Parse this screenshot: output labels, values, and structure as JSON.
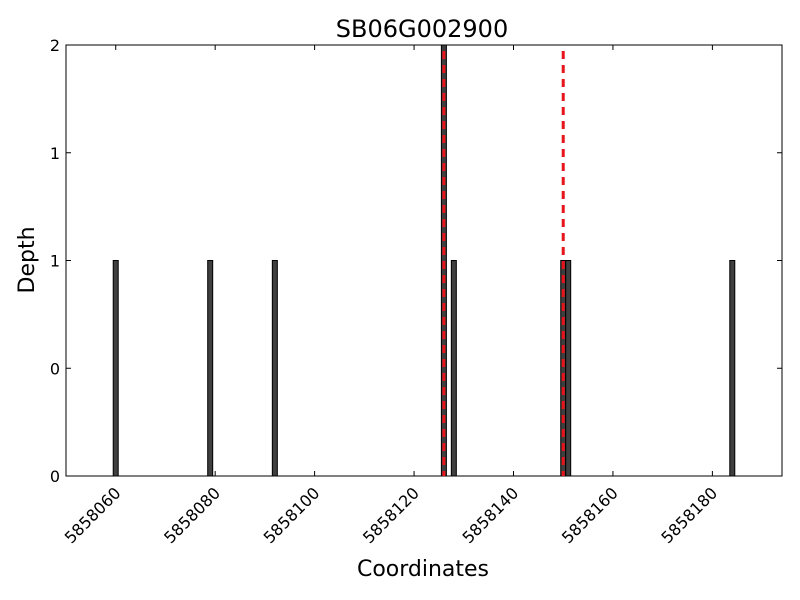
{
  "chart_data": {
    "type": "bar",
    "title": "SB06G002900",
    "xlabel": "Coordinates",
    "ylabel": "Depth",
    "xlim": [
      5858050,
      5858194
    ],
    "ylim": [
      0,
      2
    ],
    "x_ticks": [
      5858060,
      5858080,
      5858100,
      5858120,
      5858140,
      5858160,
      5858180
    ],
    "y_ticks": [
      0,
      0.5,
      1,
      1.5,
      2
    ],
    "y_tick_labels": [
      "0",
      "0",
      "1",
      "1",
      "2"
    ],
    "grid": false,
    "bars": [
      {
        "x": 5858060,
        "value": 1
      },
      {
        "x": 5858079,
        "value": 1
      },
      {
        "x": 5858092,
        "value": 1
      },
      {
        "x": 5858126,
        "value": 2
      },
      {
        "x": 5858128,
        "value": 1
      },
      {
        "x": 5858150,
        "value": 1
      },
      {
        "x": 5858151,
        "value": 1
      },
      {
        "x": 5858184,
        "value": 1
      }
    ],
    "bar_color": "#3f3f3f",
    "reference_lines": [
      {
        "x": 5858126,
        "color": "#e8141c",
        "style": "dashed"
      },
      {
        "x": 5858150,
        "color": "#e8141c",
        "style": "dashed"
      }
    ]
  }
}
